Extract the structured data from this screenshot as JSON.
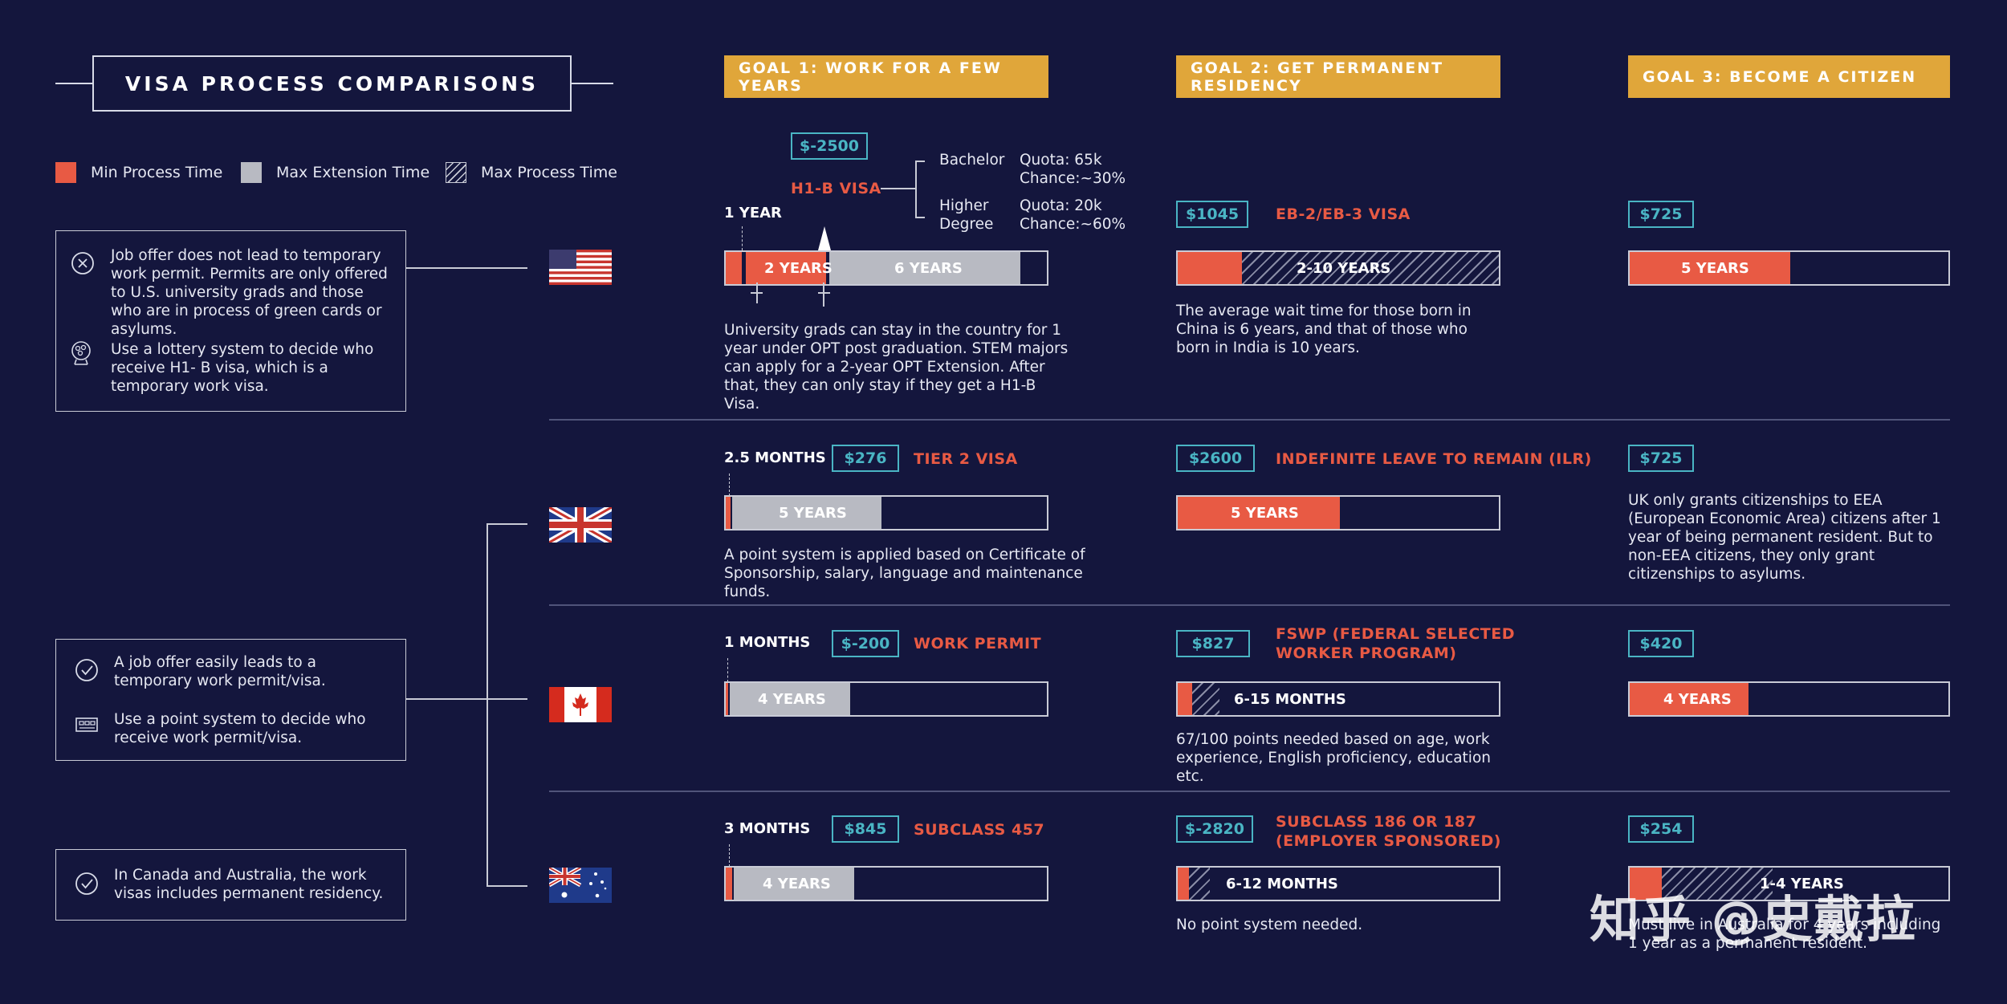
{
  "title": "VISA PROCESS COMPARISONS",
  "legend": {
    "min": "Min Process Time",
    "ext": "Max Extension Time",
    "max": "Max Process Time"
  },
  "colors": {
    "background": "#14163d",
    "min": "#e85a44",
    "extension": "#b8bac2",
    "gold": "#e0a63a",
    "teal": "#4ab5c4"
  },
  "side_boxes": {
    "us_1": "Job offer does not lead to temporary work permit. Permits are only offered to U.S. university grads and those who are in process of green cards or asylums.",
    "us_2": "Use a lottery system to decide who receive H1- B visa, which is a temporary work visa.",
    "mid_1": "A job offer easily leads to a temporary work permit/visa.",
    "mid_2": "Use a point system to decide who receive work permit/visa.",
    "bottom_1": "In Canada and Australia, the work visas includes permanent residency."
  },
  "goals": {
    "g1": "GOAL 1: WORK FOR A FEW YEARS",
    "g2": "GOAL 2: GET PERMANENT RESIDENCY",
    "g3": "GOAL 3: BECOME A CITIZEN"
  },
  "flags": [
    "usa-flag",
    "uk-flag",
    "canada-flag",
    "australia-flag"
  ],
  "us": {
    "h1b_price": "$-2500",
    "h1b_name": "H1-B VISA",
    "bachelor": "Bachelor",
    "bachelor_quota": "Quota: 65k",
    "bachelor_chance": "Chance:~30%",
    "higher": "Higher",
    "degree": "Degree",
    "higher_quota": "Quota: 20k",
    "higher_chance": "Chance:~60%",
    "min_time": "1 YEAR",
    "seg2": "2 YEARS",
    "seg3": "6 YEARS",
    "desc1": "University grads can stay in the country for 1 year under OPT post graduation. STEM majors can apply for a 2-year OPT Extension. After that, they can only stay if they get a H1-B Visa.",
    "pr_price": "$1045",
    "pr_name": "EB-2/EB-3 VISA",
    "pr_bar": "2-10 YEARS",
    "desc2": "The average wait time for those born in China is 6 years, and that of those who born in India is 10 years.",
    "cit_price": "$725",
    "cit_bar": "5 YEARS"
  },
  "uk": {
    "min_time": "2.5 MONTHS",
    "price": "$276",
    "name": "TIER 2 VISA",
    "bar": "5 YEARS",
    "desc1": "A point system is applied based on Certificate of Sponsorship, salary, language and maintenance funds.",
    "pr_price": "$2600",
    "pr_name": "INDEFINITE LEAVE TO REMAIN (ILR)",
    "pr_bar": "5 YEARS",
    "cit_price": "$725",
    "desc3": "UK only grants citizenships to EEA (European Economic Area) citizens after 1 year of being permanent resident. But to non-EEA citizens, they only grant citizenships to asylums."
  },
  "ca": {
    "min_time": "1 MONTHS",
    "price": "$-200",
    "name": "WORK PERMIT",
    "bar": "4 YEARS",
    "pr_price": "$827",
    "pr_name_1": "FSWP (FEDERAL SELECTED",
    "pr_name_2": "WORKER PROGRAM)",
    "pr_bar": "6-15 MONTHS",
    "desc2": "67/100 points needed based on age, work experience, English proficiency, education etc.",
    "cit_price": "$420",
    "cit_bar": "4 YEARS"
  },
  "au": {
    "min_time": "3 MONTHS",
    "price": "$845",
    "name": "SUBCLASS 457",
    "bar": "4 YEARS",
    "pr_price": "$-2820",
    "pr_name_1": "SUBCLASS 186 OR 187",
    "pr_name_2": "(EMPLOYER SPONSORED)",
    "pr_bar": "6-12 MONTHS",
    "desc2": "No point system needed.",
    "cit_price": "$254",
    "cit_bar": "1-4 YEARS",
    "desc3": "Must live in Australia for 4 years including 1 year as a permanent resident."
  },
  "watermark": "知乎 @史戴拉"
}
